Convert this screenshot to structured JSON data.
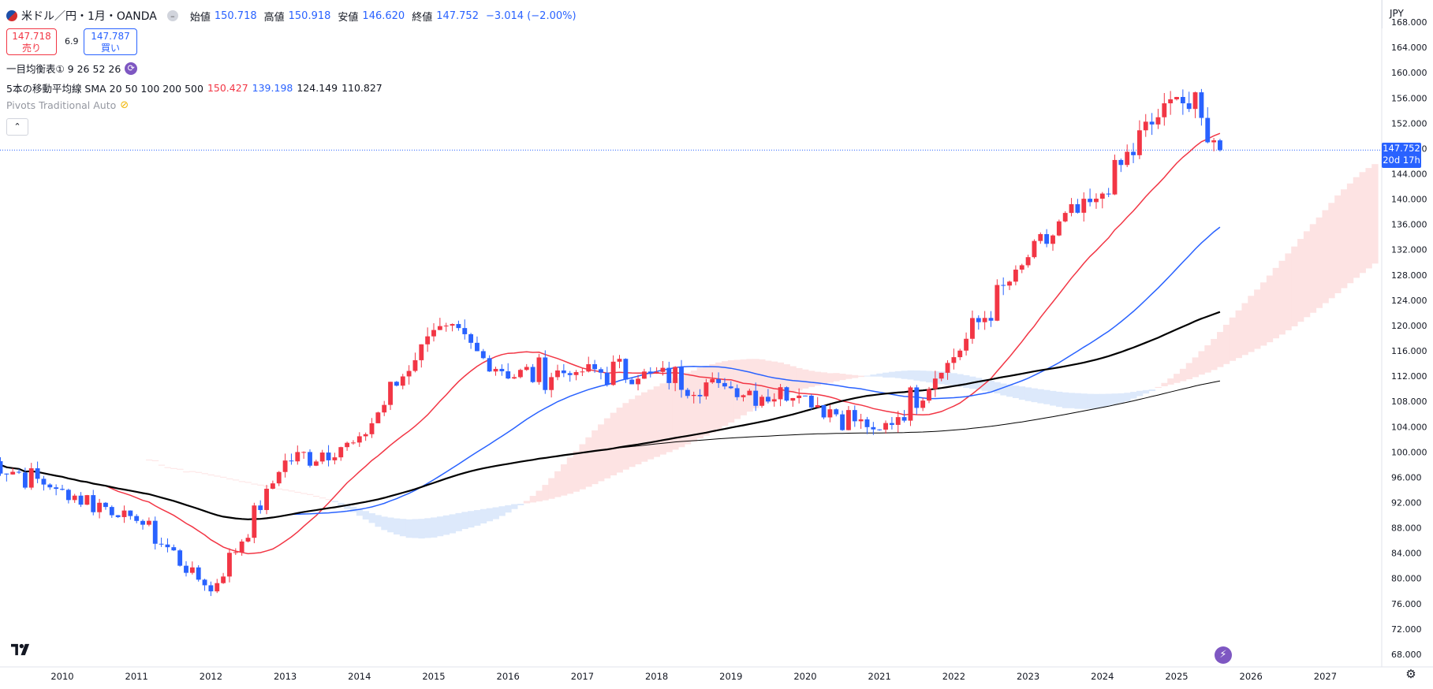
{
  "header": {
    "symbol": "米ドル／円・1月・OANDA",
    "open_label": "始値",
    "open": "150.718",
    "high_label": "高値",
    "high": "150.918",
    "low_label": "安値",
    "low": "146.620",
    "close_label": "終値",
    "close": "147.752",
    "change": "−3.014 (−2.00%)"
  },
  "trade": {
    "sell_price": "147.718",
    "sell_label": "売り",
    "spread": "6.9",
    "buy_price": "147.787",
    "buy_label": "買い"
  },
  "indicators": {
    "ichimoku": {
      "label": "一目均衡表① 9 26 52 26"
    },
    "sma": {
      "label": "5本の移動平均線 SMA 20 50 100 200 500",
      "values": [
        "150.427",
        "139.198",
        "124.149",
        "110.827"
      ]
    },
    "pivots": {
      "label": "Pivots Traditional Auto"
    }
  },
  "price_axis": {
    "currency": "JPY",
    "last_price": "147.752",
    "countdown": "20d 17h"
  },
  "colors": {
    "up": "#f23645",
    "down": "#2962ff",
    "sma20": "#f23645",
    "sma50": "#2962ff",
    "sma100": "#000000",
    "sma200": "#000000",
    "kumo_bull": "#fde3e3",
    "kumo_bear": "#dde9fb"
  },
  "chart_data": {
    "type": "candlestick",
    "ylim": [
      66,
      170
    ],
    "y_ticks": [
      68,
      72,
      76,
      80,
      84,
      88,
      92,
      96,
      100,
      104,
      108,
      112,
      116,
      120,
      124,
      128,
      132,
      136,
      140,
      144,
      148,
      152,
      156,
      160,
      164,
      168
    ],
    "x_ticks": [
      "2010",
      "2011",
      "2012",
      "2013",
      "2014",
      "2015",
      "2016",
      "2017",
      "2018",
      "2019",
      "2020",
      "2021",
      "2022",
      "2023",
      "2024",
      "2025",
      "2026",
      "2027"
    ],
    "annual_closes": [
      {
        "year": "2009",
        "close": 98.8
      },
      {
        "year": "2010",
        "close": 93.8
      },
      {
        "year": "2011",
        "close": 89.6
      },
      {
        "year": "2012",
        "close": 77.9
      },
      {
        "year": "2013",
        "close": 98.5
      },
      {
        "year": "2014",
        "close": 101.8
      },
      {
        "year": "2015",
        "close": 119.7
      },
      {
        "year": "2016",
        "close": 112.1
      },
      {
        "year": "2017",
        "close": 112.8
      },
      {
        "year": "2018",
        "close": 112.4
      },
      {
        "year": "2019",
        "close": 110.1
      },
      {
        "year": "2020",
        "close": 108.7
      },
      {
        "year": "2021",
        "close": 103.2
      },
      {
        "year": "2022",
        "close": 115.1
      },
      {
        "year": "2023",
        "close": 130.9
      },
      {
        "year": "2024",
        "close": 141.0
      },
      {
        "year": "2025",
        "close": 157.2
      },
      {
        "year": "2025-08",
        "close": 147.752
      }
    ],
    "legend": [
      "SMA 20",
      "SMA 50",
      "SMA 100",
      "SMA 200"
    ]
  }
}
